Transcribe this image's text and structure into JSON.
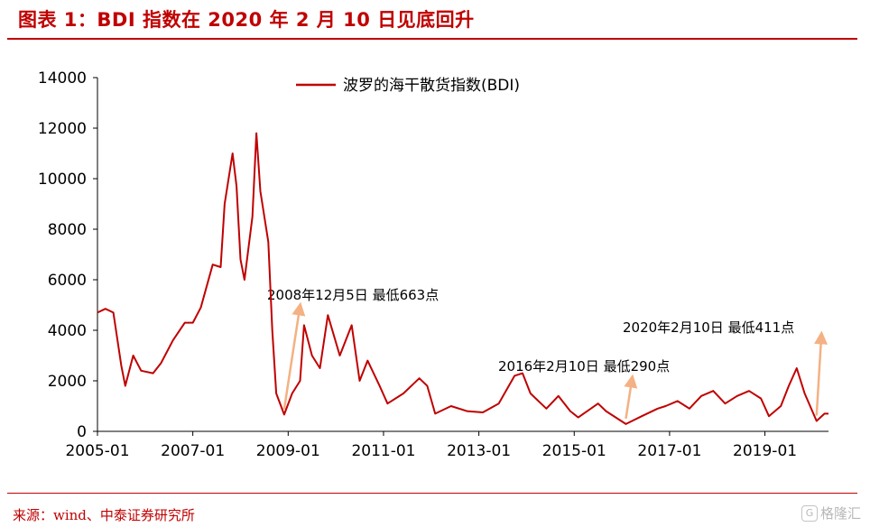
{
  "header": {
    "title": "图表 1：BDI 指数在 2020 年 2 月 10 日见底回升"
  },
  "footer": {
    "source": "来源：wind、中泰证券研究所",
    "watermark": "格隆汇"
  },
  "colors": {
    "accent": "#c00000",
    "series": "#c00000",
    "arrow": "#f4b183"
  },
  "chart_data": {
    "type": "line",
    "title": "",
    "xlabel": "",
    "ylabel": "",
    "ylim": [
      0,
      14000
    ],
    "y_ticks": [
      0,
      2000,
      4000,
      6000,
      8000,
      10000,
      12000,
      14000
    ],
    "x_ticks": [
      "2005-01",
      "2007-01",
      "2009-01",
      "2011-01",
      "2013-01",
      "2015-01",
      "2017-01",
      "2019-01"
    ],
    "xlim": [
      "2005-01",
      "2020-05"
    ],
    "grid": false,
    "legend_position": "top-center",
    "series": [
      {
        "name": "波罗的海干散货指数(BDI)",
        "color": "#c00000",
        "points": [
          [
            "2005-01",
            4700
          ],
          [
            "2005-03",
            4850
          ],
          [
            "2005-05",
            4700
          ],
          [
            "2005-07",
            2600
          ],
          [
            "2005-08",
            1800
          ],
          [
            "2005-10",
            3000
          ],
          [
            "2005-12",
            2400
          ],
          [
            "2006-03",
            2300
          ],
          [
            "2006-05",
            2700
          ],
          [
            "2006-08",
            3600
          ],
          [
            "2006-11",
            4300
          ],
          [
            "2007-01",
            4300
          ],
          [
            "2007-03",
            4900
          ],
          [
            "2007-06",
            6600
          ],
          [
            "2007-08",
            6500
          ],
          [
            "2007-09",
            9000
          ],
          [
            "2007-11",
            11000
          ],
          [
            "2007-12",
            9700
          ],
          [
            "2008-01",
            6800
          ],
          [
            "2008-02",
            6000
          ],
          [
            "2008-04",
            8500
          ],
          [
            "2008-05",
            11800
          ],
          [
            "2008-06",
            9500
          ],
          [
            "2008-08",
            7500
          ],
          [
            "2008-09",
            4000
          ],
          [
            "2008-10",
            1500
          ],
          [
            "2008-12",
            663
          ],
          [
            "2009-02",
            1500
          ],
          [
            "2009-04",
            2000
          ],
          [
            "2009-05",
            4200
          ],
          [
            "2009-07",
            3000
          ],
          [
            "2009-09",
            2500
          ],
          [
            "2009-11",
            4600
          ],
          [
            "2010-02",
            3000
          ],
          [
            "2010-05",
            4200
          ],
          [
            "2010-07",
            2000
          ],
          [
            "2010-09",
            2800
          ],
          [
            "2010-12",
            1800
          ],
          [
            "2011-02",
            1100
          ],
          [
            "2011-06",
            1500
          ],
          [
            "2011-10",
            2100
          ],
          [
            "2011-12",
            1800
          ],
          [
            "2012-02",
            700
          ],
          [
            "2012-06",
            1000
          ],
          [
            "2012-10",
            800
          ],
          [
            "2013-02",
            750
          ],
          [
            "2013-06",
            1100
          ],
          [
            "2013-10",
            2200
          ],
          [
            "2013-12",
            2300
          ],
          [
            "2014-02",
            1500
          ],
          [
            "2014-06",
            900
          ],
          [
            "2014-09",
            1400
          ],
          [
            "2014-12",
            800
          ],
          [
            "2015-02",
            550
          ],
          [
            "2015-07",
            1100
          ],
          [
            "2015-09",
            800
          ],
          [
            "2016-02",
            290
          ],
          [
            "2016-06",
            600
          ],
          [
            "2016-10",
            900
          ],
          [
            "2016-12",
            1000
          ],
          [
            "2017-03",
            1200
          ],
          [
            "2017-06",
            900
          ],
          [
            "2017-09",
            1400
          ],
          [
            "2017-12",
            1600
          ],
          [
            "2018-03",
            1100
          ],
          [
            "2018-06",
            1400
          ],
          [
            "2018-09",
            1600
          ],
          [
            "2018-12",
            1300
          ],
          [
            "2019-02",
            600
          ],
          [
            "2019-05",
            1000
          ],
          [
            "2019-07",
            1800
          ],
          [
            "2019-09",
            2500
          ],
          [
            "2019-11",
            1500
          ],
          [
            "2020-02",
            411
          ],
          [
            "2020-04",
            700
          ],
          [
            "2020-05",
            700
          ]
        ]
      }
    ],
    "annotations": [
      {
        "text": "2008年12月5日 最低663点",
        "date": "2008-12",
        "value": 663
      },
      {
        "text": "2016年2月10日 最低290点",
        "date": "2016-02",
        "value": 290
      },
      {
        "text": "2020年2月10日 最低411点",
        "date": "2020-02",
        "value": 411
      }
    ]
  }
}
